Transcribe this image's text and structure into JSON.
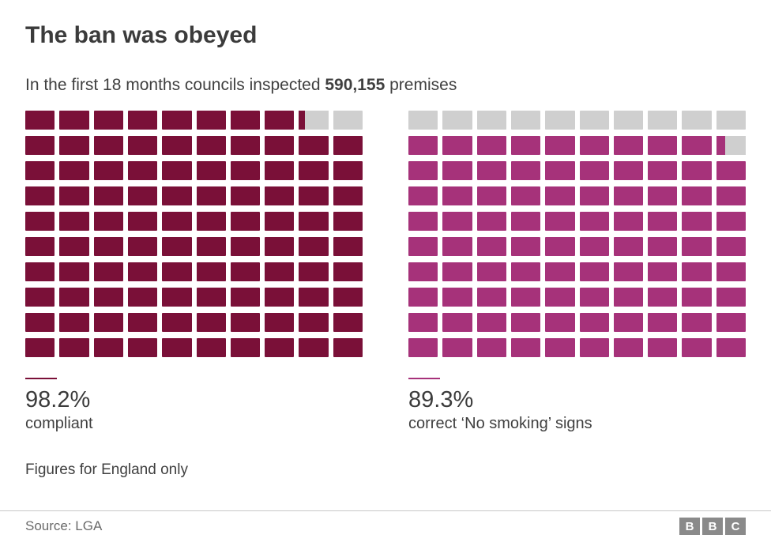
{
  "title": "The ban was obeyed",
  "subtitle_prefix": "In the first 18 months councils inspected ",
  "subtitle_bold": "590,155",
  "subtitle_suffix": " premises",
  "footnote": "Figures for England only",
  "source_label": "Source: LGA",
  "logo_letters": [
    "B",
    "B",
    "C"
  ],
  "colors": {
    "background": "#ffffff",
    "text": "#404040",
    "empty_cell": "#cfcfcf",
    "divider": "#c7c7c7",
    "logo_bg": "#8a8a8a"
  },
  "grid": {
    "rows": 10,
    "cols": 10,
    "total_cells": 100
  },
  "waffles": [
    {
      "id": "compliant",
      "percent": 98.2,
      "percent_display": "98.2%",
      "label": "compliant",
      "fill_color": "#7a1038",
      "empty_color": "#cfcfcf"
    },
    {
      "id": "no-smoking-signs",
      "percent": 89.3,
      "percent_display": "89.3%",
      "label": "correct ‘No smoking’ signs",
      "fill_color": "#a6327a",
      "empty_color": "#cfcfcf"
    }
  ]
}
